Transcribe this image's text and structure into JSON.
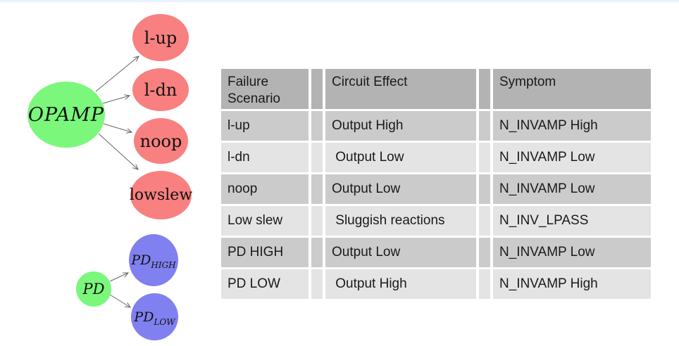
{
  "diagram": {
    "root_label": "OPAMP",
    "failure_nodes": [
      "l-up",
      "l-dn",
      "noop",
      "lowslew"
    ],
    "pd_root_label": "PD",
    "pd_nodes": [
      {
        "base": "PD",
        "sub": "HIGH"
      },
      {
        "base": "PD",
        "sub": "LOW"
      }
    ],
    "colors": {
      "root_fill": "#7bf77b",
      "failure_fill": "#f98080",
      "pd_child_fill": "#8080f0",
      "edge_stroke": "#666666"
    }
  },
  "table": {
    "headers": {
      "scenario": "Failure Scenario",
      "effect": "Circuit Effect",
      "symptom": "Symptom"
    },
    "rows": [
      {
        "scenario": "l-up",
        "effect": "Output High",
        "symptom": "N_INVAMP High"
      },
      {
        "scenario": "l-dn",
        "effect": " Output Low",
        "symptom": "N_INVAMP Low"
      },
      {
        "scenario": "noop",
        "effect": "Output Low",
        "symptom": "N_INVAMP Low"
      },
      {
        "scenario": "Low slew",
        "effect": " Sluggish reactions",
        "symptom": "N_INV_LPASS"
      },
      {
        "scenario": "PD HIGH",
        "effect": "Output Low",
        "symptom": "N_INVAMP Low"
      },
      {
        "scenario": "PD LOW",
        "effect": " Output High",
        "symptom": "N_INVAMP High"
      }
    ],
    "colors": {
      "header_bg": "#b3b3b3",
      "row_dark_bg": "#cbcbcb",
      "row_light_bg": "#e4e4e4"
    }
  }
}
